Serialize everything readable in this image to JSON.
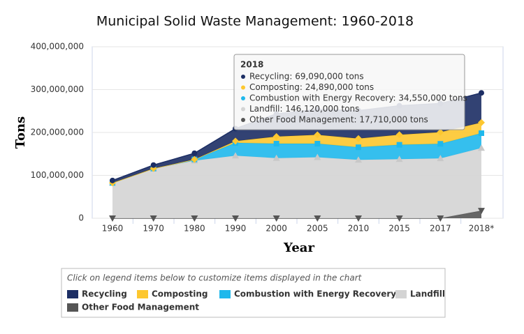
{
  "chart_data": {
    "type": "stacked-area",
    "title": "Municipal Solid Waste Management: 1960-2018",
    "x_label": "Year",
    "y_label": "Tons",
    "categories": [
      "1960",
      "1970",
      "1980",
      "1990",
      "2000",
      "2005",
      "2010",
      "2015",
      "2017",
      "2018*"
    ],
    "series": [
      {
        "name": "Recycling",
        "color": "#1c2e64",
        "marker": "circle",
        "values": [
          5600000,
          8020000,
          14520000,
          29040000,
          53010000,
          59240000,
          65310000,
          67620000,
          67000000,
          69090000
        ]
      },
      {
        "name": "Composting",
        "color": "#fdc72f",
        "marker": "diamond",
        "values": [
          0,
          0,
          0,
          4200000,
          16450000,
          20550000,
          20170000,
          23400000,
          27000000,
          24890000
        ]
      },
      {
        "name": "Combustion with Energy Recovery",
        "color": "#1fb8ec",
        "marker": "square",
        "values": [
          0,
          500000,
          2750000,
          29790000,
          33730000,
          31660000,
          29380000,
          33580000,
          34000000,
          34550000
        ]
      },
      {
        "name": "Landfill",
        "color": "#d4d4d4",
        "marker": "triangle",
        "values": [
          82500000,
          115510000,
          134390000,
          145980000,
          140260000,
          142280000,
          136180000,
          137740000,
          139600000,
          146120000
        ]
      },
      {
        "name": "Other Food Management",
        "color": "#555555",
        "marker": "triangle-down",
        "values": [
          0,
          0,
          0,
          0,
          0,
          0,
          0,
          0,
          0,
          17710000
        ]
      }
    ],
    "ylim": [
      0,
      400000000
    ],
    "yticks": [
      0,
      {
        "value": 100000000,
        "label": "100,000,000"
      },
      {
        "value": 200000000,
        "label": "200,000,000"
      },
      {
        "value": 300000000,
        "label": "300,000,000"
      },
      {
        "value": 400000000,
        "label": "400,000,000"
      }
    ],
    "grid": true,
    "tooltip": {
      "title": "2018",
      "items": [
        "Recycling: 69,090,000 tons",
        "Composting: 24,890,000 tons",
        "Combustion with Energy Recovery: 34,550,000 tons",
        "Landfill: 146,120,000 tons",
        "Other Food Management: 17,710,000 tons"
      ]
    },
    "legend_note": "Click on legend items below to customize items displayed in the chart"
  }
}
